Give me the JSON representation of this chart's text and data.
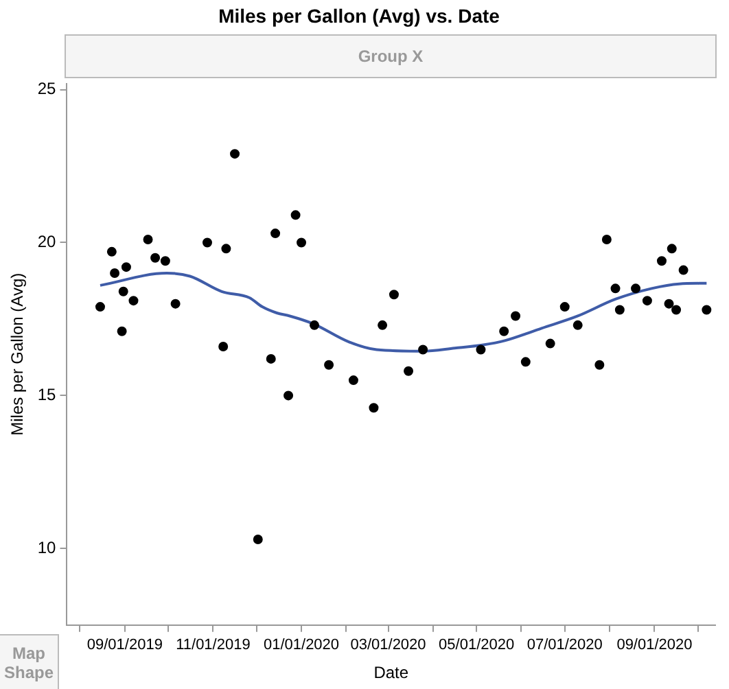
{
  "chart_data": {
    "type": "scatter",
    "title": "Miles per Gallon (Avg) vs. Date",
    "xlabel": "Date",
    "ylabel": "Miles per Gallon (Avg)",
    "annotations": [
      "Group X",
      "Map Shape"
    ],
    "xlim": [
      "2019-07-23",
      "2020-10-13"
    ],
    "xticks": [
      {
        "value": "2019-08-01",
        "label": null
      },
      {
        "value": "2019-09-01",
        "label": "09/01/2019"
      },
      {
        "value": "2019-10-01",
        "label": null
      },
      {
        "value": "2019-11-01",
        "label": "11/01/2019"
      },
      {
        "value": "2019-12-01",
        "label": null
      },
      {
        "value": "2020-01-01",
        "label": "01/01/2020"
      },
      {
        "value": "2020-02-01",
        "label": null
      },
      {
        "value": "2020-03-01",
        "label": "03/01/2020"
      },
      {
        "value": "2020-04-01",
        "label": null
      },
      {
        "value": "2020-05-01",
        "label": "05/01/2020"
      },
      {
        "value": "2020-06-01",
        "label": null
      },
      {
        "value": "2020-07-01",
        "label": "07/01/2020"
      },
      {
        "value": "2020-08-01",
        "label": null
      },
      {
        "value": "2020-09-01",
        "label": "09/01/2020"
      },
      {
        "value": "2020-10-01",
        "label": null
      }
    ],
    "ylim": [
      7.5,
      25.2
    ],
    "yticks": [
      10,
      15,
      20,
      25
    ],
    "grid": false,
    "legend": false,
    "series": [
      {
        "color": "#000000",
        "marker": "circle",
        "x": [
          "2019-08-15",
          "2019-08-23",
          "2019-08-25",
          "2019-08-30",
          "2019-08-31",
          "2019-09-02",
          "2019-09-07",
          "2019-09-17",
          "2019-09-22",
          "2019-09-29",
          "2019-10-06",
          "2019-10-28",
          "2019-11-08",
          "2019-11-10",
          "2019-11-16",
          "2019-12-02",
          "2019-12-11",
          "2019-12-14",
          "2019-12-23",
          "2019-12-28",
          "2020-01-01",
          "2020-01-10",
          "2020-01-20",
          "2020-02-06",
          "2020-02-20",
          "2020-02-26",
          "2020-03-05",
          "2020-03-15",
          "2020-03-25",
          "2020-05-04",
          "2020-05-20",
          "2020-05-28",
          "2020-06-04",
          "2020-06-21",
          "2020-07-01",
          "2020-07-10",
          "2020-07-25",
          "2020-07-30",
          "2020-08-05",
          "2020-08-08",
          "2020-08-19",
          "2020-08-27",
          "2020-09-06",
          "2020-09-11",
          "2020-09-13",
          "2020-09-16",
          "2020-09-21",
          "2020-10-07"
        ],
        "values": [
          17.9,
          19.7,
          19.0,
          17.1,
          18.4,
          19.2,
          18.1,
          20.1,
          19.5,
          19.4,
          18.0,
          20.0,
          16.6,
          19.8,
          22.9,
          10.3,
          16.2,
          20.3,
          15.0,
          20.9,
          20.0,
          17.3,
          16.0,
          15.5,
          14.6,
          17.3,
          18.3,
          15.8,
          16.5,
          16.5,
          17.1,
          17.6,
          16.1,
          16.7,
          17.9,
          17.3,
          16.0,
          20.1,
          18.5,
          17.8,
          18.5,
          18.1,
          19.4,
          18.0,
          19.8,
          17.8,
          19.1,
          17.8
        ]
      },
      {
        "type": "line",
        "color": "#3f5ca8",
        "marker": "none",
        "x": [
          "2019-08-15",
          "2019-09-30",
          "2019-10-16",
          "2019-11-07",
          "2019-11-26",
          "2019-12-05",
          "2019-12-15",
          "2019-12-24",
          "2020-01-09",
          "2020-02-03",
          "2020-02-22",
          "2020-03-25",
          "2020-04-16",
          "2020-05-05",
          "2020-05-21",
          "2020-06-15",
          "2020-07-10",
          "2020-08-05",
          "2020-08-30",
          "2020-09-18",
          "2020-10-07"
        ],
        "values": [
          18.6,
          19.0,
          18.9,
          18.4,
          18.2,
          17.9,
          17.7,
          17.6,
          17.35,
          16.75,
          16.5,
          16.45,
          16.55,
          16.65,
          16.8,
          17.2,
          17.6,
          18.15,
          18.5,
          18.65,
          18.67
        ]
      }
    ]
  }
}
